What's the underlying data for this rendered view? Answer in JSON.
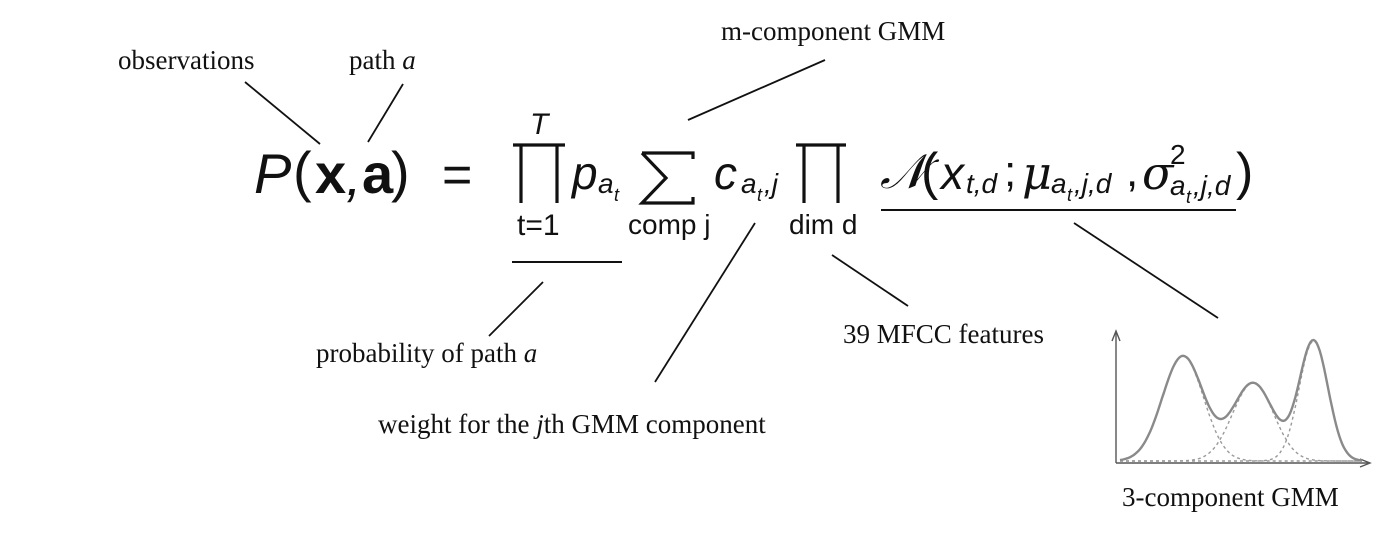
{
  "labels": {
    "observations": "observations",
    "path_a_prefix": "path ",
    "path_a_var": "a",
    "m_component": "m-component GMM",
    "prob_path_prefix": "probability of path ",
    "prob_path_var": "a",
    "weight_prefix": "weight for the ",
    "weight_var": "j",
    "weight_suffix": "th GMM component",
    "mfcc": "39 MFCC features",
    "three_comp": "3-component GMM"
  },
  "formula": {
    "P": "P",
    "lparen": "(",
    "x": "x",
    "comma": ",",
    "a": "a",
    "rparen": ")",
    "equals": "=",
    "prod_upper": "T",
    "prod_lower": "t=1",
    "p": "p",
    "p_sub": "a",
    "p_subsub": "t",
    "sum_lower": "comp j",
    "c": "c",
    "c_sub": "a",
    "c_subsub": "t",
    "c_sub_rest": ",j",
    "prod2_lower": "dim d",
    "normal": "𝒩",
    "normal_args_open": "(",
    "x_t": "x",
    "x_t_sub": "t,d",
    "semicolon": ";",
    "mu": "μ",
    "mu_sub": "a",
    "mu_subsub": "t",
    "mu_sub_rest": ",j,d",
    "sigma": "σ",
    "sigma_sup": "2",
    "sigma_sub": "a",
    "sigma_subsub": "t",
    "sigma_sub_rest": ",j,d",
    "normal_args_close": ")"
  },
  "mini_plot": {
    "components": [
      {
        "mean": 0.26,
        "sd": 0.085,
        "weight": 0.7
      },
      {
        "mean": 0.55,
        "sd": 0.085,
        "weight": 0.52
      },
      {
        "mean": 0.8,
        "sd": 0.06,
        "weight": 0.8
      }
    ]
  }
}
